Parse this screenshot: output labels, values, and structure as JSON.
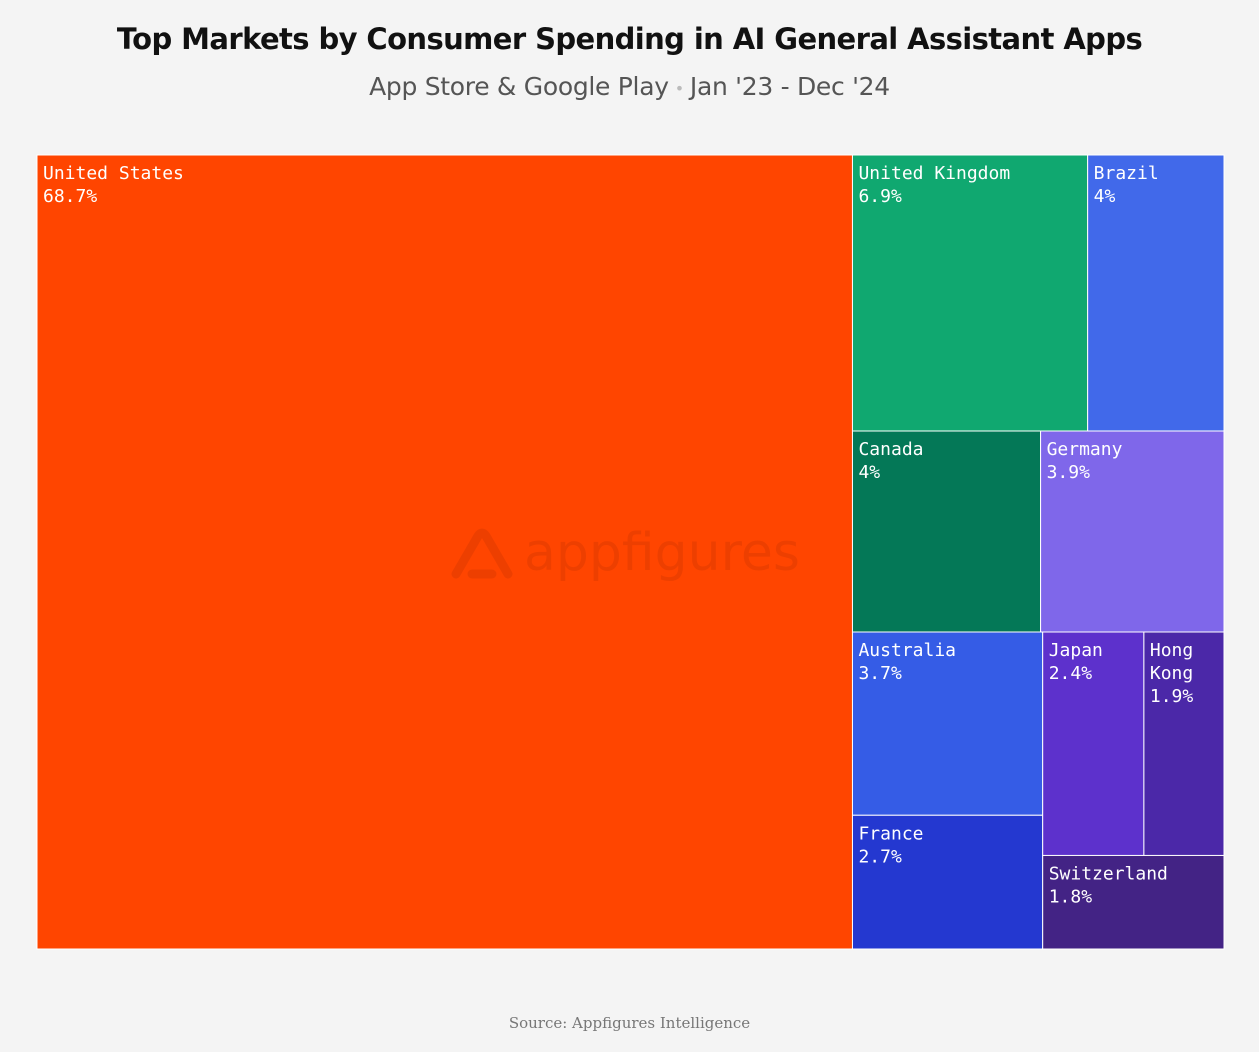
{
  "header": {
    "title": "Top Markets by Consumer Spending in AI General Assistant Apps",
    "subtitle_stores": "App Store & Google Play",
    "subtitle_separator": "•",
    "subtitle_period": "Jan '23 - Dec '24"
  },
  "watermark": {
    "brand": "appfigures"
  },
  "chart_data": {
    "type": "treemap",
    "unit": "%",
    "items": [
      {
        "name": "United States",
        "value": 68.7,
        "label": "68.7%",
        "color": "#ff4500"
      },
      {
        "name": "United Kingdom",
        "value": 6.9,
        "label": "6.9%",
        "color": "#10a870"
      },
      {
        "name": "Brazil",
        "value": 4,
        "label": "4%",
        "color": "#4169ea"
      },
      {
        "name": "Canada",
        "value": 4,
        "label": "4%",
        "color": "#047857"
      },
      {
        "name": "Germany",
        "value": 3.9,
        "label": "3.9%",
        "color": "#7f67ea"
      },
      {
        "name": "Australia",
        "value": 3.7,
        "label": "3.7%",
        "color": "#355ce6"
      },
      {
        "name": "France",
        "value": 2.7,
        "label": "2.7%",
        "color": "#2438d0"
      },
      {
        "name": "Japan",
        "value": 2.4,
        "label": "2.4%",
        "color": "#5d31cc"
      },
      {
        "name": "Hong Kong",
        "value": 1.9,
        "label": "1.9%",
        "color": "#4b28a8"
      },
      {
        "name": "Switzerland",
        "value": 1.8,
        "label": "1.8%",
        "color": "#432385"
      }
    ]
  },
  "footer": {
    "source": "Source: Appfigures Intelligence"
  }
}
